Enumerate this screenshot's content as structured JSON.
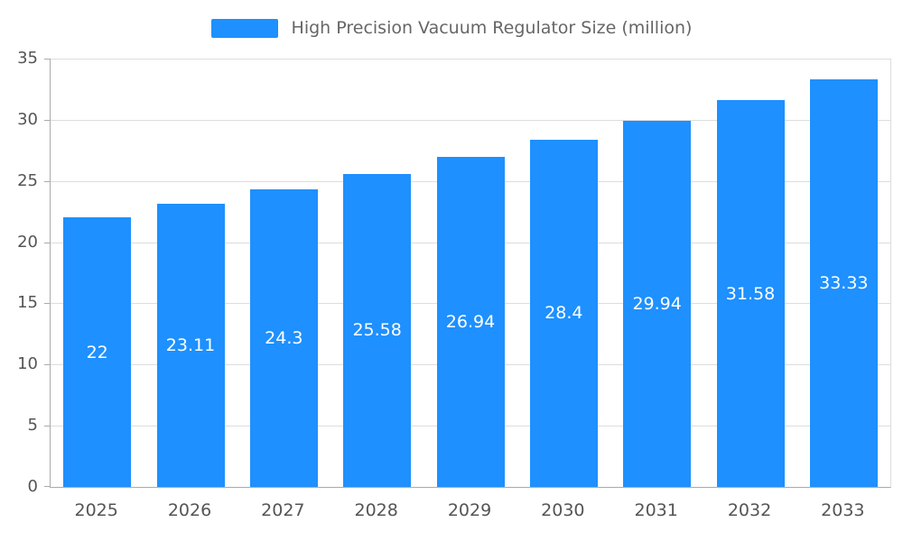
{
  "chart_data": {
    "type": "bar",
    "title": "High Precision Vacuum Regulator Size (million)",
    "categories": [
      "2025",
      "2026",
      "2027",
      "2028",
      "2029",
      "2030",
      "2031",
      "2032",
      "2033"
    ],
    "values": [
      22,
      23.11,
      24.3,
      25.58,
      26.94,
      28.4,
      29.94,
      31.58,
      33.33
    ],
    "value_labels": [
      "22",
      "23.11",
      "24.3",
      "25.58",
      "26.94",
      "28.4",
      "29.94",
      "31.58",
      "33.33"
    ],
    "xlabel": "",
    "ylabel": "",
    "ylim": [
      0,
      35
    ],
    "y_ticks": [
      0,
      5,
      10,
      15,
      20,
      25,
      30,
      35
    ],
    "grid": true,
    "legend_position": "top",
    "bar_color": "#1e90ff",
    "bar_label_color": "#ffffff",
    "axis_text_color": "#555555",
    "legend_text_color": "#666666",
    "gridline_color": "#dddddd",
    "axis_line_color": "#aaaaaa"
  }
}
